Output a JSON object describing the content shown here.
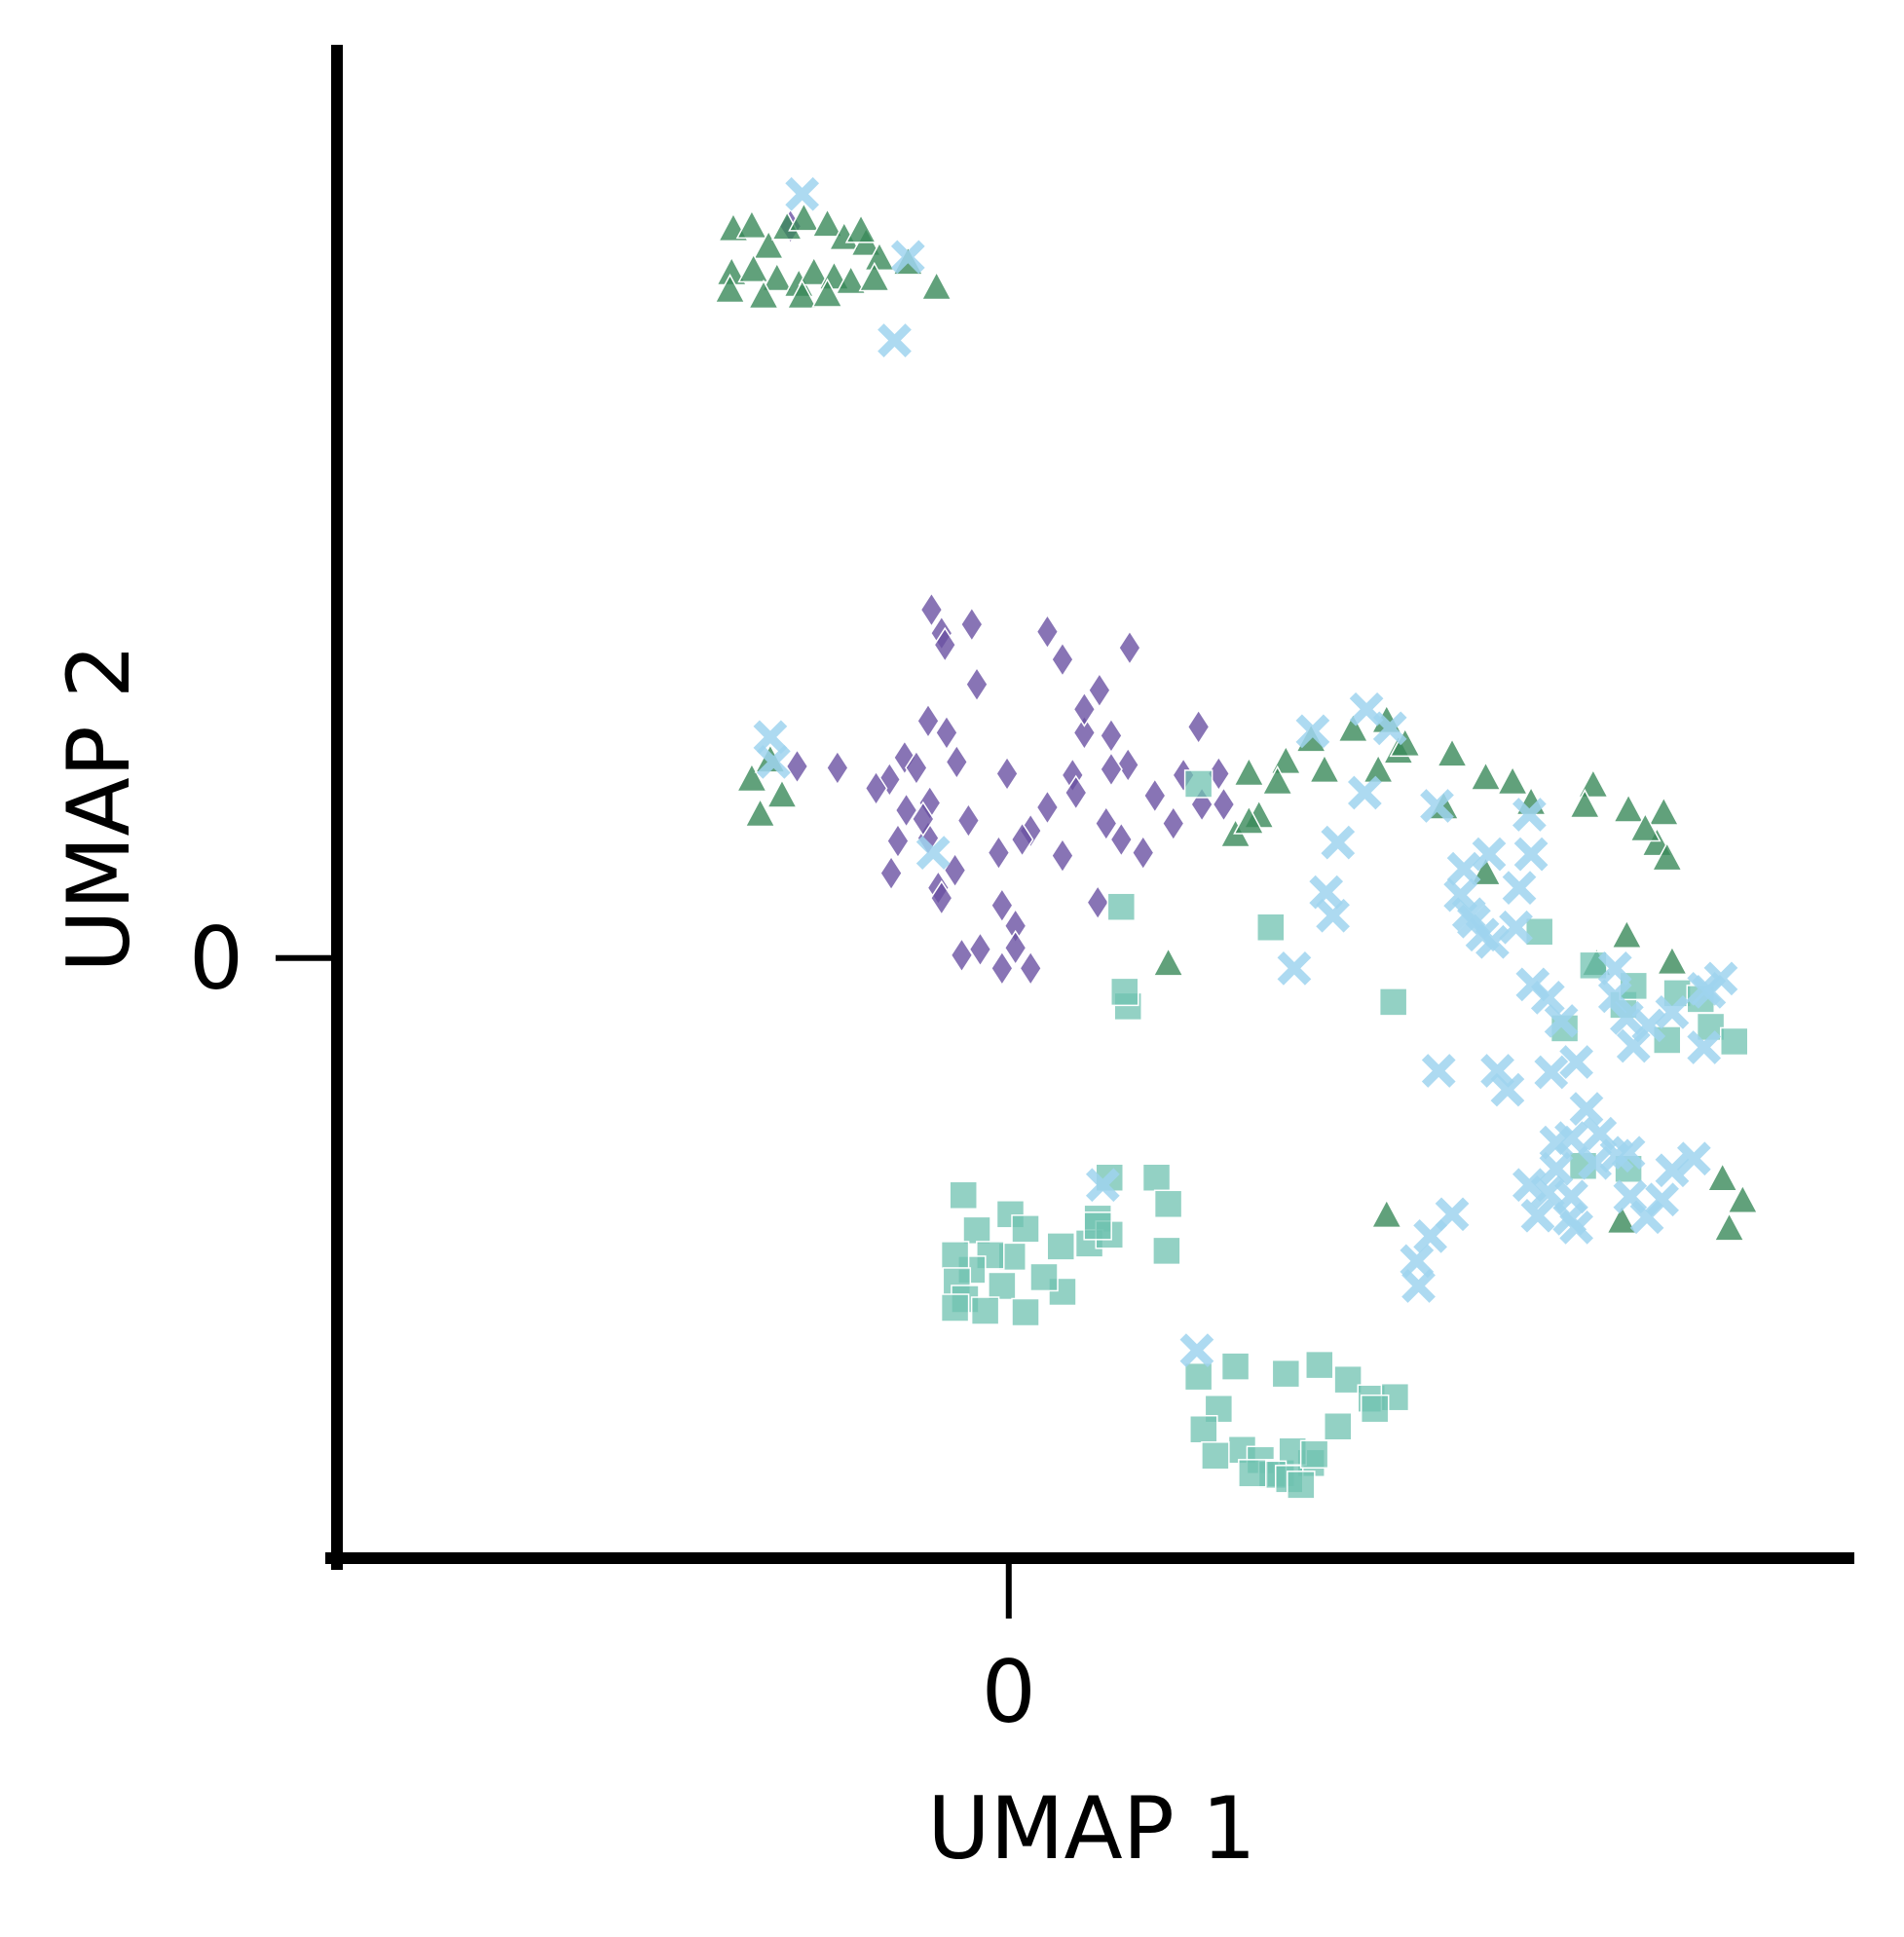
{
  "chart_data": {
    "type": "scatter",
    "xlabel": "UMAP 1",
    "ylabel": "UMAP 2",
    "xlim": [
      -4.0,
      5.0
    ],
    "ylim": [
      -4.1,
      6.2
    ],
    "x_ticks": [
      {
        "value": 0,
        "label": "0"
      }
    ],
    "y_ticks": [
      {
        "value": 0,
        "label": "0"
      }
    ],
    "grid": false,
    "series": [
      {
        "marker": "diamond",
        "color": "#6a51a3",
        "points": [
          [
            -1.3,
            5.0
          ],
          [
            -0.46,
            2.38
          ],
          [
            -0.4,
            2.22
          ],
          [
            -0.38,
            2.14
          ],
          [
            -0.48,
            1.62
          ],
          [
            -0.37,
            1.54
          ],
          [
            -0.31,
            1.34
          ],
          [
            -0.7,
            0.58
          ],
          [
            -0.48,
            0.82
          ],
          [
            0.23,
            1.03
          ],
          [
            0.38,
            1.25
          ],
          [
            0.71,
            1.32
          ],
          [
            0.8,
            0.72
          ],
          [
            0.53,
            0.38
          ],
          [
            0.13,
            -0.07
          ],
          [
            0.04,
            0.22
          ],
          [
            0.13,
            0.87
          ],
          [
            0.32,
            0.7
          ],
          [
            0.4,
            1.13
          ],
          [
            -0.32,
            0.6
          ],
          [
            -0.24,
            0.94
          ],
          [
            -0.01,
            1.26
          ],
          [
            0.45,
            1.54
          ],
          [
            -0.19,
            1.87
          ],
          [
            -0.22,
            2.28
          ],
          [
            0.23,
            2.23
          ],
          [
            0.32,
            2.04
          ],
          [
            0.45,
            1.7
          ],
          [
            0.54,
            1.83
          ],
          [
            0.61,
            1.52
          ],
          [
            0.72,
            2.12
          ],
          [
            0.61,
            1.29
          ],
          [
            0.58,
            0.92
          ],
          [
            0.67,
            0.81
          ],
          [
            0.87,
            1.11
          ],
          [
            1.04,
            1.25
          ],
          [
            1.13,
            1.58
          ],
          [
            1.25,
            1.26
          ],
          [
            1.15,
            1.05
          ],
          [
            0.98,
            0.92
          ],
          [
            1.28,
            1.05
          ],
          [
            -0.04,
            -0.07
          ],
          [
            -0.28,
            0.02
          ],
          [
            -0.17,
            0.06
          ],
          [
            0.04,
            0.07
          ],
          [
            -0.04,
            0.36
          ],
          [
            -0.42,
            0.48
          ],
          [
            -0.4,
            0.41
          ],
          [
            -0.66,
            0.8
          ],
          [
            -0.47,
            1.06
          ],
          [
            -0.61,
            1.01
          ],
          [
            -0.71,
            1.22
          ],
          [
            -0.79,
            1.16
          ],
          [
            -0.62,
            1.37
          ],
          [
            -0.55,
            1.3
          ],
          [
            -0.51,
            0.95
          ],
          [
            -0.06,
            0.72
          ],
          [
            0.08,
            0.81
          ],
          [
            -1.26,
            1.31
          ],
          [
            -1.02,
            1.3
          ]
        ]
      },
      {
        "marker": "triangle",
        "color": "#3a8a5a",
        "points": [
          [
            -1.64,
            4.98
          ],
          [
            -1.53,
            5.0
          ],
          [
            -1.43,
            4.86
          ],
          [
            -1.32,
            4.99
          ],
          [
            -1.22,
            5.05
          ],
          [
            -1.08,
            5.01
          ],
          [
            -0.98,
            4.92
          ],
          [
            -0.85,
            4.88
          ],
          [
            -0.77,
            4.78
          ],
          [
            -1.65,
            4.68
          ],
          [
            -1.52,
            4.7
          ],
          [
            -1.38,
            4.64
          ],
          [
            -1.25,
            4.6
          ],
          [
            -1.16,
            4.68
          ],
          [
            -1.04,
            4.65
          ],
          [
            -0.94,
            4.62
          ],
          [
            -0.8,
            4.64
          ],
          [
            -0.6,
            4.75
          ],
          [
            -0.43,
            4.58
          ],
          [
            -0.88,
            4.97
          ],
          [
            -1.66,
            4.56
          ],
          [
            -1.46,
            4.52
          ],
          [
            -1.23,
            4.52
          ],
          [
            -1.08,
            4.53
          ],
          [
            -1.48,
            0.98
          ],
          [
            -1.35,
            1.11
          ],
          [
            -1.53,
            1.22
          ],
          [
            -1.42,
            1.35
          ],
          [
            1.43,
            1.26
          ],
          [
            1.65,
            1.34
          ],
          [
            1.88,
            1.28
          ],
          [
            1.49,
            0.97
          ],
          [
            1.35,
            0.84
          ],
          [
            1.43,
            0.93
          ],
          [
            1.6,
            1.2
          ],
          [
            1.8,
            1.49
          ],
          [
            2.05,
            1.56
          ],
          [
            2.25,
            1.62
          ],
          [
            2.32,
            1.41
          ],
          [
            2.64,
            1.39
          ],
          [
            2.2,
            1.28
          ],
          [
            2.36,
            1.46
          ],
          [
            2.84,
            1.23
          ],
          [
            3.0,
            1.2
          ],
          [
            2.59,
            1.03
          ],
          [
            3.11,
            1.06
          ],
          [
            3.48,
            1.18
          ],
          [
            3.43,
            1.04
          ],
          [
            3.69,
            1.01
          ],
          [
            3.9,
            0.99
          ],
          [
            3.86,
            0.78
          ],
          [
            3.92,
            0.68
          ],
          [
            3.79,
            0.88
          ],
          [
            3.68,
            0.15
          ],
          [
            4.25,
            -1.51
          ],
          [
            4.37,
            -1.66
          ],
          [
            4.29,
            -1.85
          ],
          [
            2.25,
            -1.76
          ],
          [
            3.65,
            -1.8
          ],
          [
            0.95,
            -0.04
          ],
          [
            3.95,
            -0.03
          ],
          [
            3.5,
            -0.04
          ],
          [
            2.84,
            0.58
          ]
        ]
      },
      {
        "marker": "square",
        "color": "#6fc2b0",
        "points": [
          [
            1.13,
            1.19
          ],
          [
            0.67,
            0.35
          ],
          [
            1.56,
            0.21
          ],
          [
            0.71,
            -0.33
          ],
          [
            0.69,
            -0.23
          ],
          [
            2.29,
            -0.3
          ],
          [
            3.16,
            0.18
          ],
          [
            3.48,
            -0.05
          ],
          [
            3.98,
            -0.24
          ],
          [
            4.12,
            -0.28
          ],
          [
            4.18,
            -0.47
          ],
          [
            3.92,
            -0.56
          ],
          [
            4.32,
            -0.57
          ],
          [
            3.31,
            -0.48
          ],
          [
            3.66,
            -0.32
          ],
          [
            3.72,
            -0.19
          ],
          [
            0.88,
            -1.5
          ],
          [
            0.95,
            -1.68
          ],
          [
            0.94,
            -2.0
          ],
          [
            0.6,
            -1.5
          ],
          [
            0.53,
            -1.78
          ],
          [
            -0.27,
            -1.62
          ],
          [
            0.01,
            -1.75
          ],
          [
            -0.19,
            -1.86
          ],
          [
            0.02,
            -2.04
          ],
          [
            0.1,
            -1.85
          ],
          [
            -0.11,
            -2.03
          ],
          [
            -0.22,
            -2.13
          ],
          [
            -0.32,
            -2.03
          ],
          [
            -0.31,
            -2.21
          ],
          [
            -0.26,
            -2.33
          ],
          [
            -0.04,
            -2.24
          ],
          [
            -0.14,
            -2.41
          ],
          [
            0.1,
            -2.42
          ],
          [
            0.32,
            -2.28
          ],
          [
            0.21,
            -2.18
          ],
          [
            0.31,
            -1.97
          ],
          [
            0.48,
            -1.95
          ],
          [
            0.6,
            -1.89
          ],
          [
            0.53,
            -1.83
          ],
          [
            -0.32,
            -2.39
          ],
          [
            1.13,
            -2.86
          ],
          [
            1.35,
            -2.79
          ],
          [
            1.65,
            -2.84
          ],
          [
            1.85,
            -2.78
          ],
          [
            2.02,
            -2.88
          ],
          [
            2.16,
            -3.01
          ],
          [
            2.3,
            -3.0
          ],
          [
            2.18,
            -3.08
          ],
          [
            1.96,
            -3.2
          ],
          [
            1.25,
            -3.08
          ],
          [
            1.16,
            -3.22
          ],
          [
            1.39,
            -3.36
          ],
          [
            1.5,
            -3.43
          ],
          [
            1.62,
            -3.52
          ],
          [
            1.8,
            -3.45
          ],
          [
            1.69,
            -3.37
          ],
          [
            1.57,
            -3.53
          ],
          [
            1.45,
            -3.52
          ],
          [
            1.23,
            -3.4
          ],
          [
            1.67,
            -3.56
          ],
          [
            1.74,
            -3.6
          ],
          [
            1.82,
            -3.39
          ],
          [
            3.42,
            -1.42
          ],
          [
            3.69,
            -1.44
          ]
        ]
      },
      {
        "marker": "x",
        "color": "#9fd3ef",
        "points": [
          [
            -1.23,
            5.22
          ],
          [
            -0.6,
            4.79
          ],
          [
            -0.68,
            4.22
          ],
          [
            -1.42,
            1.51
          ],
          [
            -1.4,
            1.34
          ],
          [
            -0.45,
            0.72
          ],
          [
            1.81,
            1.55
          ],
          [
            2.13,
            1.7
          ],
          [
            2.27,
            1.57
          ],
          [
            2.12,
            1.13
          ],
          [
            1.96,
            0.79
          ],
          [
            1.89,
            0.45
          ],
          [
            1.93,
            0.29
          ],
          [
            1.7,
            -0.07
          ],
          [
            2.55,
            1.04
          ],
          [
            2.86,
            0.71
          ],
          [
            2.71,
            0.61
          ],
          [
            2.69,
            0.43
          ],
          [
            2.74,
            0.3
          ],
          [
            2.77,
            0.25
          ],
          [
            2.82,
            0.16
          ],
          [
            2.88,
            0.11
          ],
          [
            3.04,
            0.48
          ],
          [
            3.1,
            0.98
          ],
          [
            3.11,
            0.71
          ],
          [
            3.02,
            0.21
          ],
          [
            3.12,
            -0.18
          ],
          [
            3.21,
            -0.27
          ],
          [
            3.29,
            -0.43
          ],
          [
            3.61,
            -0.07
          ],
          [
            3.61,
            -0.26
          ],
          [
            3.68,
            -0.41
          ],
          [
            3.81,
            -0.46
          ],
          [
            3.95,
            -0.37
          ],
          [
            4.14,
            -0.21
          ],
          [
            4.24,
            -0.14
          ],
          [
            4.17,
            -0.23
          ],
          [
            3.72,
            -0.6
          ],
          [
            4.14,
            -0.61
          ],
          [
            2.56,
            -0.77
          ],
          [
            2.91,
            -0.77
          ],
          [
            2.97,
            -0.9
          ],
          [
            3.23,
            -0.78
          ],
          [
            3.38,
            -0.71
          ],
          [
            3.44,
            -1.03
          ],
          [
            3.35,
            -1.23
          ],
          [
            3.26,
            -1.44
          ],
          [
            3.1,
            -1.55
          ],
          [
            3.15,
            -1.76
          ],
          [
            3.34,
            -1.78
          ],
          [
            3.38,
            -1.84
          ],
          [
            3.21,
            -1.6
          ],
          [
            3.35,
            -1.63
          ],
          [
            3.49,
            -1.4
          ],
          [
            3.52,
            -1.2
          ],
          [
            3.62,
            -1.35
          ],
          [
            3.69,
            -1.33
          ],
          [
            3.7,
            -1.63
          ],
          [
            3.95,
            -1.45
          ],
          [
            4.08,
            -1.37
          ],
          [
            3.8,
            -1.77
          ],
          [
            3.89,
            -1.65
          ],
          [
            2.51,
            -1.9
          ],
          [
            2.64,
            -1.75
          ],
          [
            2.43,
            -2.07
          ],
          [
            2.44,
            -2.24
          ],
          [
            1.12,
            -2.68
          ],
          [
            0.56,
            -1.55
          ],
          [
            3.26,
            -1.26
          ]
        ]
      }
    ]
  }
}
